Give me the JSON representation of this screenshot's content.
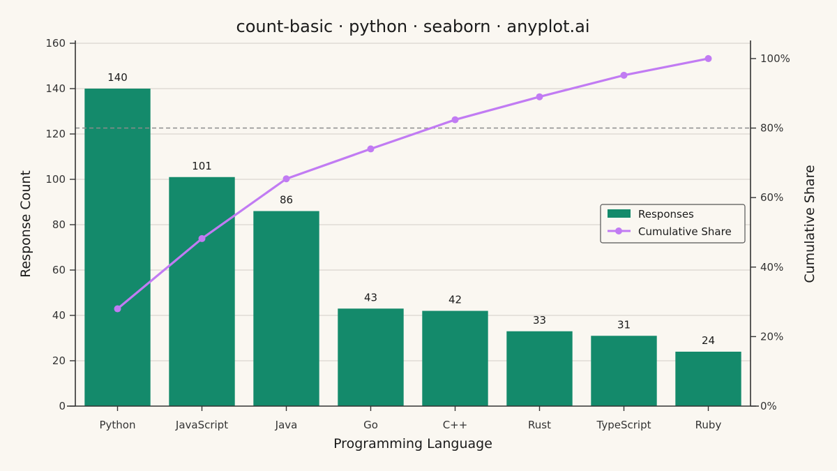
{
  "chart_data": {
    "type": "bar",
    "title": "count-basic · python · seaborn · anyplot.ai",
    "xlabel": "Programming Language",
    "ylabel": "Response Count",
    "y2label": "Cumulative Share",
    "categories": [
      "Python",
      "JavaScript",
      "Java",
      "Go",
      "C++",
      "Rust",
      "TypeScript",
      "Ruby"
    ],
    "series": [
      {
        "name": "Responses",
        "type": "bar",
        "axis": "left",
        "values": [
          140,
          101,
          86,
          43,
          42,
          33,
          31,
          24
        ]
      },
      {
        "name": "Cumulative Share",
        "type": "line",
        "axis": "right",
        "values": [
          28,
          48.2,
          65.4,
          74,
          82.4,
          89,
          95.2,
          100
        ]
      }
    ],
    "ylim": [
      0,
      160
    ],
    "y_ticks": [
      0,
      20,
      40,
      60,
      80,
      100,
      120,
      140,
      160
    ],
    "y2lim": [
      0,
      104.4
    ],
    "y2_ticks": [
      0,
      20,
      40,
      60,
      80,
      100
    ],
    "y2_tick_labels": [
      "0%",
      "20%",
      "40%",
      "60%",
      "80%",
      "100%"
    ],
    "threshold_line": {
      "axis": "right",
      "value": 80,
      "style": "dashed"
    },
    "grid": {
      "horizontal": true,
      "vertical": false
    },
    "legend_position": "center-right",
    "colors": {
      "background": "#FAF7F1",
      "bar": "#148A6B",
      "line": "#C17BF3",
      "threshold": "#8C8C8C",
      "grid": "#D9D6D0",
      "axis": "#333333"
    }
  }
}
